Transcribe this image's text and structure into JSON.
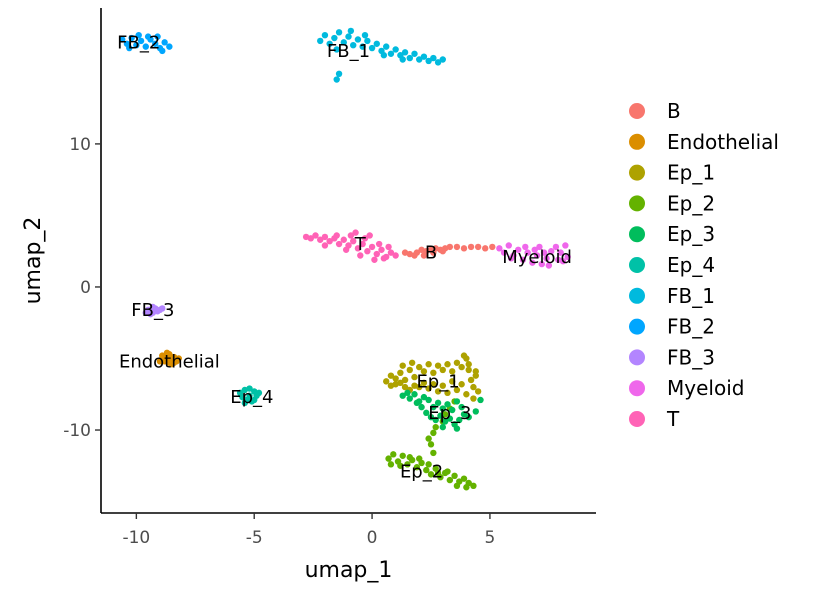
{
  "chart_data": {
    "type": "scatter",
    "title": "",
    "xlabel": "umap_1",
    "ylabel": "umap_2",
    "xlim": [
      -11.5,
      9.5
    ],
    "ylim": [
      -15.8,
      19.5
    ],
    "x_ticks": [
      -10,
      -5,
      0,
      5
    ],
    "y_ticks": [
      -10,
      0,
      10
    ],
    "x_tick_labels": [
      "-10",
      "-5",
      "0",
      "5"
    ],
    "y_tick_labels": [
      "-10",
      "0",
      "10"
    ],
    "grid": false,
    "legend_position": "right",
    "legend_items": [
      "B",
      "Endothelial",
      "Ep_1",
      "Ep_2",
      "Ep_3",
      "Ep_4",
      "FB_1",
      "FB_2",
      "FB_3",
      "Myeloid",
      "T"
    ],
    "series": [
      {
        "name": "B",
        "color": "#F8766D",
        "label": "B",
        "label_pos": [
          2.5,
          2.4
        ],
        "points": [
          [
            1.6,
            2.3
          ],
          [
            1.9,
            2.4
          ],
          [
            2.1,
            2.6
          ],
          [
            2.3,
            2.5
          ],
          [
            2.5,
            2.6
          ],
          [
            2.7,
            2.7
          ],
          [
            2.9,
            2.6
          ],
          [
            3.1,
            2.7
          ],
          [
            3.3,
            2.8
          ],
          [
            3.6,
            2.8
          ],
          [
            3.9,
            2.7
          ],
          [
            4.2,
            2.8
          ],
          [
            4.5,
            2.8
          ],
          [
            4.8,
            2.7
          ],
          [
            5.1,
            2.8
          ],
          [
            2.2,
            2.2
          ],
          [
            2.6,
            2.4
          ],
          [
            3.0,
            2.5
          ],
          [
            1.4,
            2.4
          ],
          [
            1.8,
            2.2
          ]
        ]
      },
      {
        "name": "Endothelial",
        "color": "#DB8E00",
        "label": "Endothelial",
        "label_pos": [
          -8.6,
          -5.2
        ],
        "points": [
          [
            -8.9,
            -5.0
          ],
          [
            -8.7,
            -4.8
          ],
          [
            -8.5,
            -5.0
          ],
          [
            -8.6,
            -5.3
          ],
          [
            -8.8,
            -5.2
          ],
          [
            -8.4,
            -4.9
          ],
          [
            -8.3,
            -5.2
          ],
          [
            -8.7,
            -4.6
          ],
          [
            -8.9,
            -4.8
          ],
          [
            -8.5,
            -5.4
          ],
          [
            -8.2,
            -5.0
          ],
          [
            -8.6,
            -4.7
          ],
          [
            -9.0,
            -5.2
          ],
          [
            -8.4,
            -5.3
          ],
          [
            -8.7,
            -5.1
          ]
        ]
      },
      {
        "name": "Ep_1",
        "color": "#AEA200",
        "label": "Ep_1",
        "label_pos": [
          2.8,
          -6.6
        ],
        "points": [
          [
            0.6,
            -6.6
          ],
          [
            0.8,
            -6.2
          ],
          [
            1.0,
            -6.8
          ],
          [
            1.2,
            -6.0
          ],
          [
            1.4,
            -6.5
          ],
          [
            1.6,
            -5.8
          ],
          [
            1.8,
            -6.3
          ],
          [
            2.0,
            -5.6
          ],
          [
            2.2,
            -5.9
          ],
          [
            2.4,
            -5.4
          ],
          [
            2.6,
            -6.0
          ],
          [
            2.8,
            -5.5
          ],
          [
            3.0,
            -5.8
          ],
          [
            3.2,
            -5.4
          ],
          [
            3.4,
            -5.9
          ],
          [
            3.6,
            -5.3
          ],
          [
            3.8,
            -5.6
          ],
          [
            4.0,
            -5.0
          ],
          [
            4.1,
            -5.8
          ],
          [
            4.2,
            -6.5
          ],
          [
            4.3,
            -7.0
          ],
          [
            4.4,
            -6.2
          ],
          [
            4.5,
            -7.3
          ],
          [
            4.3,
            -7.8
          ],
          [
            4.0,
            -7.5
          ],
          [
            3.8,
            -6.8
          ],
          [
            3.6,
            -7.2
          ],
          [
            3.4,
            -6.6
          ],
          [
            3.2,
            -7.4
          ],
          [
            3.0,
            -6.9
          ],
          [
            2.8,
            -7.3
          ],
          [
            2.6,
            -6.8
          ],
          [
            2.4,
            -7.1
          ],
          [
            2.2,
            -6.7
          ],
          [
            2.0,
            -7.0
          ],
          [
            1.8,
            -6.9
          ],
          [
            1.6,
            -7.2
          ],
          [
            1.4,
            -7.0
          ],
          [
            1.2,
            -6.7
          ],
          [
            1.0,
            -6.4
          ],
          [
            0.8,
            -6.9
          ],
          [
            1.3,
            -5.5
          ],
          [
            1.7,
            -5.3
          ],
          [
            3.9,
            -4.8
          ],
          [
            4.1,
            -5.4
          ],
          [
            4.4,
            -5.9
          ]
        ]
      },
      {
        "name": "Ep_2",
        "color": "#64B200",
        "label": "Ep_2",
        "label_pos": [
          2.1,
          -12.9
        ],
        "points": [
          [
            0.7,
            -12.0
          ],
          [
            0.9,
            -11.7
          ],
          [
            1.1,
            -12.2
          ],
          [
            1.3,
            -11.8
          ],
          [
            1.5,
            -12.4
          ],
          [
            1.7,
            -12.1
          ],
          [
            1.9,
            -12.6
          ],
          [
            2.1,
            -12.3
          ],
          [
            2.3,
            -12.8
          ],
          [
            2.5,
            -13.1
          ],
          [
            2.7,
            -12.7
          ],
          [
            2.9,
            -13.3
          ],
          [
            3.1,
            -13.0
          ],
          [
            3.3,
            -13.5
          ],
          [
            3.5,
            -13.2
          ],
          [
            3.7,
            -13.6
          ],
          [
            3.9,
            -13.4
          ],
          [
            4.1,
            -13.7
          ],
          [
            4.3,
            -13.9
          ],
          [
            0.8,
            -12.4
          ],
          [
            1.2,
            -12.5
          ],
          [
            1.6,
            -11.9
          ],
          [
            2.0,
            -12.0
          ],
          [
            2.4,
            -12.4
          ],
          [
            2.8,
            -13.0
          ],
          [
            3.2,
            -12.9
          ],
          [
            3.6,
            -13.9
          ],
          [
            4.0,
            -14.0
          ],
          [
            2.6,
            -11.6
          ],
          [
            2.5,
            -11.0
          ],
          [
            2.4,
            -10.6
          ],
          [
            2.6,
            -10.2
          ],
          [
            2.7,
            -9.8
          ],
          [
            3.0,
            -9.4
          ],
          [
            3.1,
            -8.9
          ],
          [
            3.3,
            -8.5
          ],
          [
            3.5,
            -8.0
          ]
        ]
      },
      {
        "name": "Ep_3",
        "color": "#00BD5C",
        "label": "Ep_3",
        "label_pos": [
          3.3,
          -8.8
        ],
        "points": [
          [
            1.3,
            -7.6
          ],
          [
            1.6,
            -7.8
          ],
          [
            1.9,
            -8.1
          ],
          [
            2.1,
            -8.4
          ],
          [
            2.3,
            -8.8
          ],
          [
            2.5,
            -9.1
          ],
          [
            2.7,
            -9.3
          ],
          [
            2.9,
            -9.0
          ],
          [
            3.1,
            -9.4
          ],
          [
            3.3,
            -9.2
          ],
          [
            3.5,
            -9.6
          ],
          [
            3.7,
            -9.3
          ],
          [
            3.9,
            -8.9
          ],
          [
            4.1,
            -9.1
          ],
          [
            3.8,
            -8.4
          ],
          [
            3.6,
            -8.0
          ],
          [
            3.4,
            -8.6
          ],
          [
            3.2,
            -8.2
          ],
          [
            3.0,
            -8.5
          ],
          [
            2.8,
            -8.1
          ],
          [
            2.6,
            -8.4
          ],
          [
            2.4,
            -7.9
          ],
          [
            2.2,
            -7.7
          ],
          [
            2.0,
            -8.0
          ],
          [
            1.8,
            -7.5
          ],
          [
            3.6,
            -9.9
          ],
          [
            3.0,
            -9.8
          ],
          [
            4.4,
            -8.7
          ],
          [
            4.6,
            -7.9
          ],
          [
            1.5,
            -7.4
          ]
        ]
      },
      {
        "name": "Ep_4",
        "color": "#00C1A7",
        "label": "Ep_4",
        "label_pos": [
          -5.1,
          -7.7
        ],
        "points": [
          [
            -5.6,
            -7.4
          ],
          [
            -5.4,
            -7.2
          ],
          [
            -5.2,
            -7.6
          ],
          [
            -5.0,
            -7.3
          ],
          [
            -5.3,
            -7.9
          ],
          [
            -5.5,
            -7.7
          ],
          [
            -5.1,
            -8.0
          ],
          [
            -4.9,
            -7.6
          ],
          [
            -5.2,
            -7.1
          ],
          [
            -5.4,
            -8.1
          ],
          [
            -5.0,
            -7.9
          ],
          [
            -4.8,
            -7.4
          ]
        ]
      },
      {
        "name": "FB_1",
        "color": "#00BADE",
        "label": "FB_1",
        "label_pos": [
          -1.0,
          16.5
        ],
        "points": [
          [
            -2.2,
            17.2
          ],
          [
            -2.0,
            17.6
          ],
          [
            -1.8,
            17.0
          ],
          [
            -1.6,
            17.4
          ],
          [
            -1.4,
            17.8
          ],
          [
            -1.2,
            17.1
          ],
          [
            -1.0,
            17.5
          ],
          [
            -0.8,
            16.9
          ],
          [
            -0.6,
            17.3
          ],
          [
            -0.4,
            16.8
          ],
          [
            -0.2,
            17.2
          ],
          [
            0.0,
            16.7
          ],
          [
            0.2,
            17.0
          ],
          [
            0.4,
            16.5
          ],
          [
            0.6,
            16.8
          ],
          [
            0.8,
            16.3
          ],
          [
            1.0,
            16.6
          ],
          [
            1.2,
            16.2
          ],
          [
            1.4,
            16.4
          ],
          [
            1.6,
            16.0
          ],
          [
            1.8,
            16.3
          ],
          [
            2.0,
            15.9
          ],
          [
            2.2,
            16.1
          ],
          [
            2.4,
            15.8
          ],
          [
            2.6,
            16.0
          ],
          [
            2.8,
            15.7
          ],
          [
            3.0,
            15.9
          ],
          [
            -1.5,
            16.6
          ],
          [
            -0.9,
            17.9
          ],
          [
            -0.3,
            17.6
          ],
          [
            0.5,
            16.2
          ],
          [
            1.3,
            15.9
          ],
          [
            -1.4,
            14.9
          ],
          [
            -1.5,
            14.5
          ]
        ]
      },
      {
        "name": "FB_2",
        "color": "#00A6FF",
        "label": "FB_2",
        "label_pos": [
          -9.9,
          17.1
        ],
        "points": [
          [
            -10.6,
            17.3
          ],
          [
            -10.4,
            17.0
          ],
          [
            -10.2,
            17.4
          ],
          [
            -10.0,
            16.9
          ],
          [
            -9.8,
            17.2
          ],
          [
            -9.6,
            16.8
          ],
          [
            -9.4,
            17.3
          ],
          [
            -9.2,
            17.0
          ],
          [
            -9.0,
            16.7
          ],
          [
            -8.8,
            17.1
          ],
          [
            -8.6,
            16.8
          ],
          [
            -9.9,
            17.6
          ],
          [
            -9.5,
            17.5
          ],
          [
            -10.3,
            16.7
          ],
          [
            -9.1,
            17.5
          ],
          [
            -8.9,
            16.5
          ]
        ]
      },
      {
        "name": "FB_3",
        "color": "#B385FF",
        "label": "FB_3",
        "label_pos": [
          -9.3,
          -1.6
        ],
        "points": [
          [
            -9.5,
            -1.6
          ],
          [
            -9.3,
            -1.4
          ],
          [
            -9.1,
            -1.7
          ],
          [
            -9.4,
            -1.9
          ],
          [
            -9.2,
            -1.5
          ],
          [
            -9.0,
            -1.6
          ],
          [
            -9.6,
            -1.8
          ],
          [
            -9.3,
            -1.8
          ],
          [
            -8.9,
            -1.5
          ]
        ]
      },
      {
        "name": "Myeloid",
        "color": "#EF67EB",
        "label": "Myeloid",
        "label_pos": [
          7.0,
          2.1
        ],
        "points": [
          [
            5.4,
            2.7
          ],
          [
            5.6,
            2.4
          ],
          [
            5.8,
            2.9
          ],
          [
            6.0,
            2.2
          ],
          [
            6.2,
            2.6
          ],
          [
            6.4,
            1.9
          ],
          [
            6.6,
            2.4
          ],
          [
            6.8,
            1.7
          ],
          [
            7.0,
            2.2
          ],
          [
            7.2,
            1.6
          ],
          [
            7.4,
            2.0
          ],
          [
            7.6,
            2.5
          ],
          [
            7.8,
            2.8
          ],
          [
            8.0,
            2.4
          ],
          [
            8.2,
            2.9
          ],
          [
            8.3,
            2.1
          ],
          [
            7.1,
            2.8
          ],
          [
            6.5,
            2.8
          ],
          [
            7.5,
            1.5
          ],
          [
            7.9,
            1.9
          ],
          [
            5.9,
            2.0
          ],
          [
            6.9,
            2.6
          ],
          [
            8.1,
            1.8
          ],
          [
            7.3,
            2.4
          ]
        ]
      },
      {
        "name": "T",
        "color": "#FF63B6",
        "label": "T",
        "label_pos": [
          -0.5,
          3.0
        ],
        "points": [
          [
            -2.8,
            3.5
          ],
          [
            -2.6,
            3.4
          ],
          [
            -2.4,
            3.6
          ],
          [
            -2.2,
            3.3
          ],
          [
            -2.0,
            3.5
          ],
          [
            -1.8,
            3.2
          ],
          [
            -1.6,
            3.4
          ],
          [
            -1.4,
            3.0
          ],
          [
            -1.2,
            3.3
          ],
          [
            -1.0,
            2.9
          ],
          [
            -0.8,
            3.2
          ],
          [
            -0.6,
            2.7
          ],
          [
            -0.4,
            3.0
          ],
          [
            -0.2,
            2.5
          ],
          [
            0.0,
            2.8
          ],
          [
            0.2,
            2.3
          ],
          [
            0.4,
            2.6
          ],
          [
            0.6,
            2.1
          ],
          [
            0.8,
            2.4
          ],
          [
            1.0,
            2.2
          ],
          [
            -1.5,
            3.6
          ],
          [
            -0.9,
            3.6
          ],
          [
            -0.3,
            3.4
          ],
          [
            0.3,
            3.0
          ],
          [
            0.7,
            2.8
          ],
          [
            -0.5,
            2.2
          ],
          [
            -1.1,
            2.6
          ],
          [
            0.1,
            1.9
          ],
          [
            -0.7,
            3.8
          ],
          [
            -0.1,
            3.6
          ],
          [
            0.5,
            2.0
          ],
          [
            -2.0,
            2.9
          ]
        ]
      }
    ]
  }
}
